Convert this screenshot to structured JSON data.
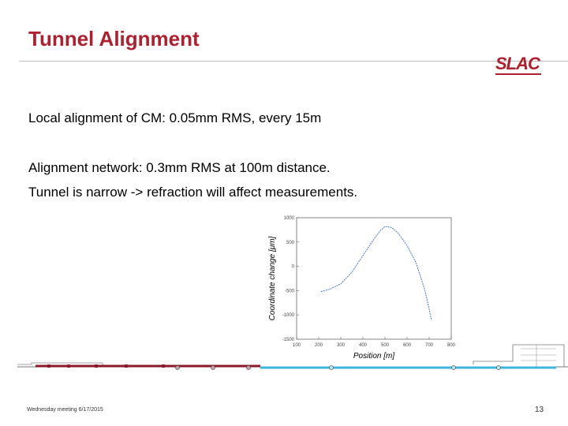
{
  "slide": {
    "title": "Tunnel Alignment",
    "logo_text": "SLAC",
    "bullets": [
      "Local alignment of CM: 0.05mm RMS, every 15m",
      "Alignment network: 0.3mm RMS at 100m distance.",
      "Tunnel is narrow -> refraction will affect measurements."
    ],
    "footer_left": "Wednesday meeting 6/17/2015",
    "page_number": "13",
    "colors": {
      "title": "#b01f2e",
      "curve": "#4a78c8",
      "beamline": "#3fb4dd",
      "cryomodule": "#8b1a2b"
    }
  },
  "chart_data": {
    "type": "line",
    "title": "",
    "xlabel": "Position [m]",
    "ylabel": "Coordinate change [μm]",
    "xlim": [
      100,
      800
    ],
    "ylim": [
      -1500,
      1000
    ],
    "xticks": [
      "100",
      "200",
      "300",
      "400",
      "500",
      "600",
      "700",
      "800"
    ],
    "yticks": [
      "1000",
      "500",
      "0",
      "-500",
      "-1000",
      "-1500"
    ],
    "grid": false,
    "series": [
      {
        "x": [
          210,
          250,
          300,
          350,
          400,
          450,
          480,
          500,
          530,
          560,
          600,
          640,
          680,
          700,
          710
        ],
        "y": [
          -520,
          -470,
          -360,
          -120,
          220,
          560,
          740,
          820,
          800,
          680,
          430,
          80,
          -480,
          -880,
          -1100
        ]
      }
    ]
  },
  "diagram": {
    "beam_elements": [
      "quad",
      "quad",
      "quad",
      "quad",
      "quad",
      "quad"
    ]
  }
}
